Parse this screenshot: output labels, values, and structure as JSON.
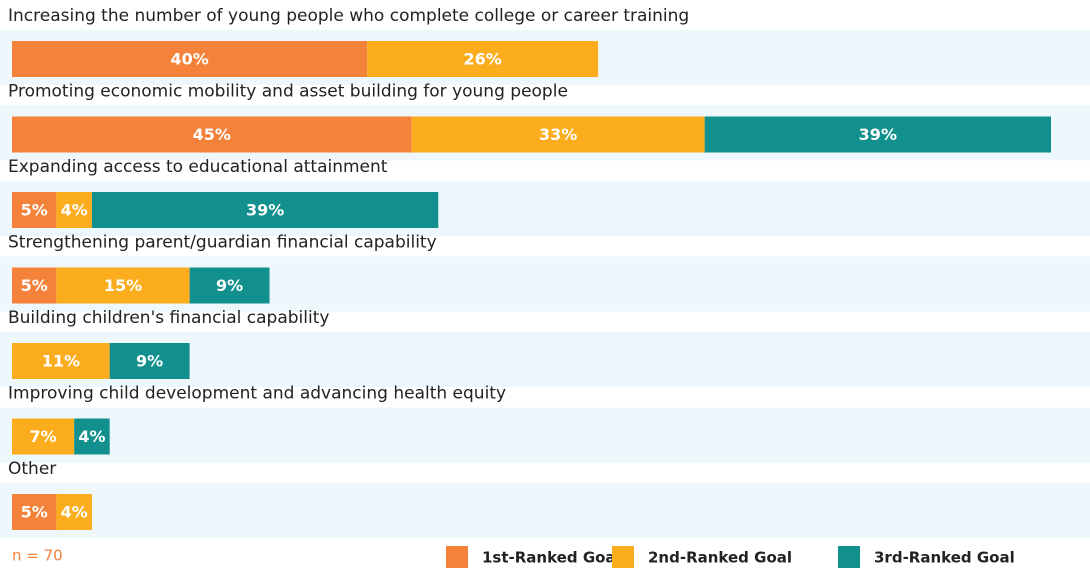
{
  "chart_data": {
    "type": "stacked-barh",
    "categories": [
      "Increasing the number of young people who complete college or career training",
      "Promoting economic mobility and asset building for young people",
      "Expanding access to educational attainment",
      "Strengthening parent/guardian financial capability",
      "Building children's financial capability",
      "Improving child development and advancing health equity",
      "Other"
    ],
    "series": [
      {
        "name": "1st-Ranked Goal",
        "color": "#f4823a",
        "values": [
          40,
          45,
          5,
          5,
          null,
          null,
          5
        ],
        "value_labels": [
          "40%",
          "45%",
          "5%",
          "5%",
          null,
          null,
          "5%"
        ]
      },
      {
        "name": "2nd-Ranked Goal",
        "color": "#fbad1e",
        "values": [
          26,
          33,
          4,
          15,
          11,
          7,
          4
        ],
        "value_labels": [
          "26%",
          "33%",
          "4%",
          "15%",
          "11%",
          "7%",
          "4%"
        ]
      },
      {
        "name": "3rd-Ranked Goal",
        "color": "#12908e",
        "values": [
          null,
          39,
          39,
          9,
          9,
          4,
          null
        ],
        "value_labels": [
          null,
          "39%",
          "39%",
          "9%",
          "9%",
          "4%",
          null
        ]
      }
    ],
    "note": "n = 70"
  }
}
